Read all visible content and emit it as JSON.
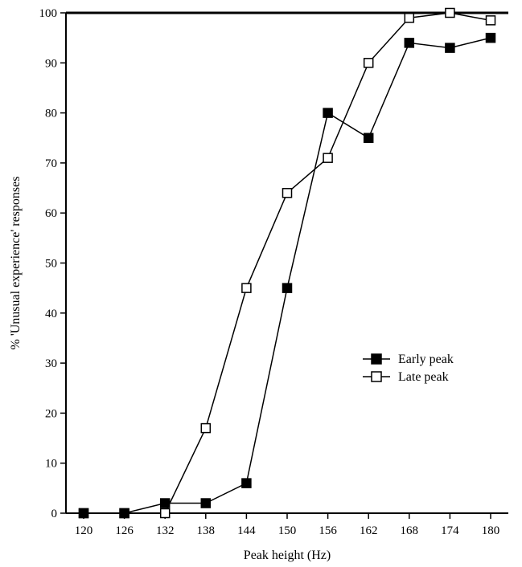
{
  "chart_data": {
    "type": "line",
    "xlabel": "Peak height (Hz)",
    "ylabel": "% 'Unusual experience' responses",
    "x": [
      120,
      126,
      132,
      138,
      144,
      150,
      156,
      162,
      168,
      174,
      180
    ],
    "xlim": [
      120,
      180
    ],
    "ylim": [
      0,
      100
    ],
    "yticks": [
      0,
      10,
      20,
      30,
      40,
      50,
      60,
      70,
      80,
      90,
      100
    ],
    "grid": false,
    "legend_position": "right-middle",
    "series": [
      {
        "name": "Early peak",
        "marker": "filled-square",
        "values": [
          0,
          0,
          2,
          2,
          6,
          45,
          80,
          75,
          94,
          93,
          95
        ]
      },
      {
        "name": "Late peak",
        "marker": "open-square",
        "values": [
          0,
          0,
          0,
          17,
          45,
          64,
          71,
          90,
          99,
          100,
          98.5
        ]
      }
    ]
  }
}
